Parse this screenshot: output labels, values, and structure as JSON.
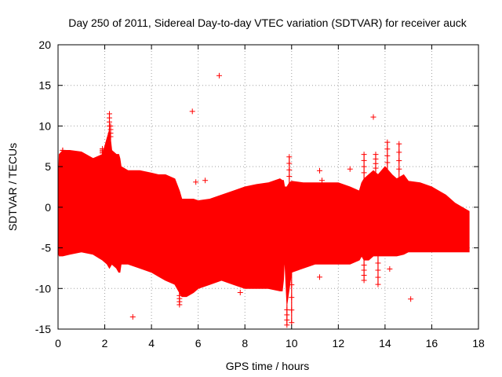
{
  "chart_data": {
    "type": "scatter",
    "title": "Day 250 of 2011, Sidereal Day-to-day VTEC variation (SDTVAR) for receiver auck",
    "xlabel": "GPS time / hours",
    "ylabel": "SDTVAR / TECUs",
    "xlim": [
      0,
      18
    ],
    "ylim": [
      -15,
      20
    ],
    "xticks": [
      0,
      2,
      4,
      6,
      8,
      10,
      12,
      14,
      16,
      18
    ],
    "yticks": [
      -15,
      -10,
      -5,
      0,
      5,
      10,
      15,
      20
    ],
    "grid": true,
    "series_color": "#ff0000",
    "marker": "plus",
    "envelope": {
      "name": "SDTVAR dense band",
      "x": [
        0.0,
        0.05,
        0.2,
        0.5,
        1.0,
        1.5,
        1.9,
        2.1,
        2.2,
        2.3,
        2.5,
        2.6,
        2.65,
        2.7,
        3.0,
        3.5,
        4.0,
        4.3,
        4.6,
        5.0,
        5.2,
        5.3,
        5.5,
        5.8,
        6.0,
        6.5,
        7.0,
        7.5,
        8.0,
        8.5,
        9.0,
        9.5,
        9.6,
        9.65,
        9.7,
        9.8,
        9.9,
        10.0,
        10.5,
        11.0,
        11.5,
        12.0,
        12.5,
        12.9,
        13.0,
        13.1,
        13.3,
        13.5,
        13.7,
        14.0,
        14.3,
        14.5,
        14.8,
        15.0,
        15.5,
        16.0,
        16.3,
        16.6,
        17.0,
        17.3,
        17.6
      ],
      "upper": [
        1.5,
        6.5,
        7.0,
        7.0,
        6.8,
        6.0,
        6.5,
        8.5,
        9.5,
        7.0,
        6.5,
        6.5,
        6.0,
        5.0,
        4.5,
        4.5,
        4.2,
        4.0,
        4.0,
        3.5,
        2.0,
        1.0,
        1.0,
        1.0,
        0.8,
        1.0,
        1.5,
        2.0,
        2.5,
        2.8,
        3.0,
        3.5,
        3.3,
        3.3,
        2.5,
        2.5,
        3.0,
        3.2,
        3.0,
        3.0,
        3.0,
        3.0,
        2.5,
        2.0,
        3.0,
        3.5,
        4.0,
        4.5,
        4.0,
        5.0,
        4.0,
        3.5,
        4.0,
        3.2,
        3.0,
        2.5,
        2.0,
        1.5,
        0.5,
        0.0,
        -0.5
      ],
      "lower": [
        -5.5,
        -6.0,
        -6.0,
        -5.8,
        -5.5,
        -5.8,
        -6.5,
        -7.0,
        -7.5,
        -7.0,
        -7.5,
        -8.0,
        -8.0,
        -7.0,
        -7.0,
        -7.5,
        -8.0,
        -8.5,
        -9.0,
        -9.5,
        -10.5,
        -11.0,
        -11.0,
        -10.5,
        -10.0,
        -9.5,
        -9.0,
        -9.5,
        -10.0,
        -10.0,
        -10.0,
        -10.3,
        -10.3,
        -9.0,
        -6.0,
        -12.0,
        -10.0,
        -8.0,
        -7.5,
        -7.0,
        -7.0,
        -7.0,
        -7.0,
        -6.5,
        -6.0,
        -6.5,
        -6.5,
        -6.0,
        -6.0,
        -6.0,
        -6.0,
        -6.0,
        -5.8,
        -5.5,
        -5.5,
        -5.5,
        -5.5,
        -5.5,
        -5.5,
        -5.5,
        -5.5
      ]
    },
    "spikes": [
      {
        "x": 2.2,
        "y": 11.5
      },
      {
        "x": 2.25,
        "y": 10.0
      },
      {
        "x": 1.9,
        "y": 7.2
      },
      {
        "x": 0.2,
        "y": 7.0
      },
      {
        "x": 9.9,
        "y": 6.2
      },
      {
        "x": 13.1,
        "y": 6.5
      },
      {
        "x": 13.6,
        "y": 6.5
      },
      {
        "x": 14.6,
        "y": 7.8
      },
      {
        "x": 14.1,
        "y": 8.0
      },
      {
        "x": 10.0,
        "y": -14.2
      },
      {
        "x": 9.8,
        "y": -14.5
      },
      {
        "x": 5.2,
        "y": -12.0
      },
      {
        "x": 13.1,
        "y": -9.0
      },
      {
        "x": 13.7,
        "y": -9.5
      }
    ],
    "outliers": [
      {
        "x": 6.9,
        "y": 16.2
      },
      {
        "x": 5.75,
        "y": 11.8
      },
      {
        "x": 13.5,
        "y": 11.1
      },
      {
        "x": 11.2,
        "y": 4.5
      },
      {
        "x": 12.5,
        "y": 4.7
      },
      {
        "x": 11.3,
        "y": 3.3
      },
      {
        "x": 15.1,
        "y": -11.3
      },
      {
        "x": 3.2,
        "y": -13.5
      },
      {
        "x": 7.8,
        "y": -10.5
      },
      {
        "x": 14.2,
        "y": -7.6
      },
      {
        "x": 11.2,
        "y": -8.6
      },
      {
        "x": 5.9,
        "y": 3.1
      },
      {
        "x": 6.3,
        "y": 3.3
      }
    ]
  }
}
